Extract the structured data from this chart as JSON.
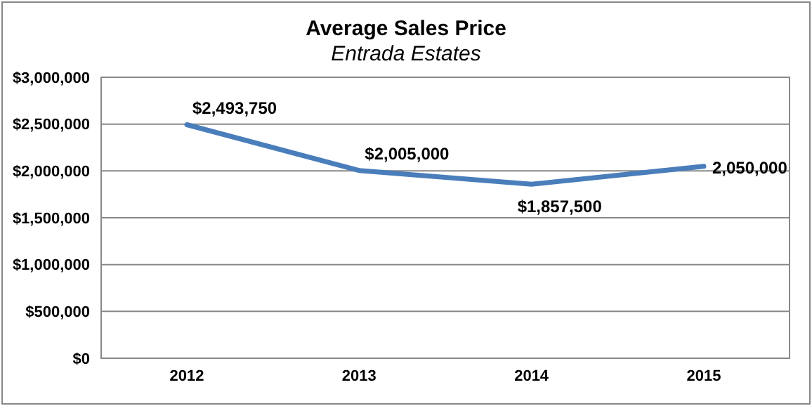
{
  "chart_data": {
    "type": "line",
    "title": "Average Sales Price",
    "subtitle": "Entrada Estates",
    "categories": [
      "2012",
      "2013",
      "2014",
      "2015"
    ],
    "series": [
      {
        "color": "#4a7ebb",
        "values": [
          2493750,
          2005000,
          1857500,
          2050000
        ],
        "value_labels": [
          "$2,493,750",
          "$2,005,000",
          "$1,857,500",
          "2,050,000"
        ]
      }
    ],
    "ylim": [
      0,
      3000000
    ],
    "yticks": [
      {
        "value": 0,
        "label": "$0"
      },
      {
        "value": 500000,
        "label": "$500,000"
      },
      {
        "value": 1000000,
        "label": "$1,000,000"
      },
      {
        "value": 1500000,
        "label": "$1,500,000"
      },
      {
        "value": 2000000,
        "label": "$2,000,000"
      },
      {
        "value": 2500000,
        "label": "$2,500,000"
      },
      {
        "value": 3000000,
        "label": "$3,000,000"
      }
    ],
    "grid": "y",
    "legend": false,
    "marker": "none",
    "line_style": "solid"
  }
}
